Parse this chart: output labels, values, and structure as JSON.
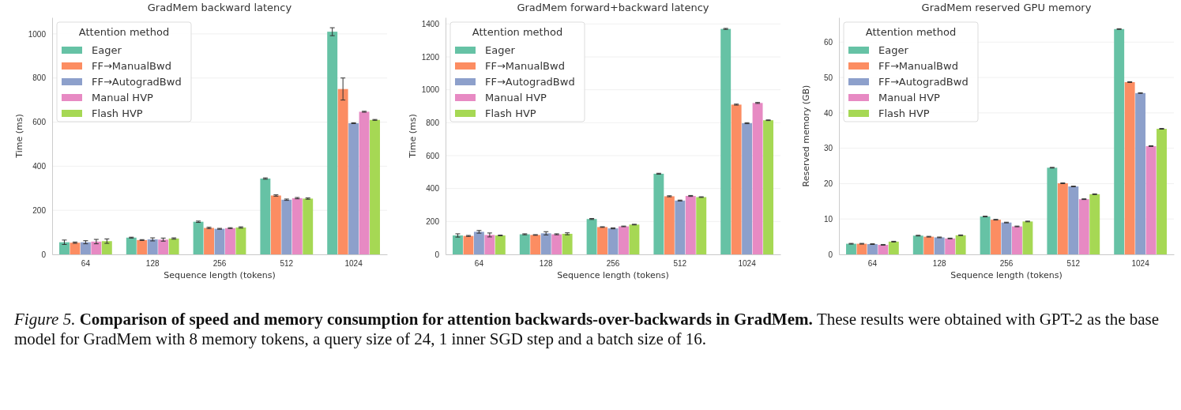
{
  "chart_data": [
    {
      "type": "bar",
      "title": "GradMem backward latency",
      "xlabel": "Sequence length (tokens)",
      "ylabel": "Time (ms)",
      "legend_title": "Attention method",
      "legend": "top left",
      "grid": "y",
      "categories": [
        "64",
        "128",
        "256",
        "512",
        "1024"
      ],
      "ylim": [
        0,
        1075
      ],
      "yticks": [
        0,
        200,
        400,
        600,
        800,
        1000
      ],
      "series": [
        {
          "name": "Eager",
          "color": "#66c2a5",
          "values": [
            55,
            76,
            148,
            344,
            1010
          ],
          "errors": [
            10,
            2,
            3,
            3,
            18
          ]
        },
        {
          "name": "FF→ManualBwd",
          "color": "#fc8d62",
          "values": [
            53,
            65,
            120,
            267,
            750
          ],
          "errors": [
            3,
            2,
            3,
            3,
            50
          ]
        },
        {
          "name": "FF→AutogradBwd",
          "color": "#8da0cb",
          "values": [
            55,
            68,
            116,
            248,
            595
          ],
          "errors": [
            7,
            7,
            2,
            3,
            2
          ]
        },
        {
          "name": "Manual HVP",
          "color": "#e78ac3",
          "values": [
            58,
            67,
            119,
            255,
            647
          ],
          "errors": [
            10,
            7,
            2,
            3,
            2
          ]
        },
        {
          "name": "Flash HVP",
          "color": "#a6d854",
          "values": [
            60,
            72,
            122,
            253,
            610
          ],
          "errors": [
            10,
            3,
            3,
            3,
            2
          ]
        }
      ],
      "annotations": [
        "Figure 5.",
        "Comparison of speed and memory consumption for attention backwards-over-backwards in GradMem.",
        "These results were obtained with GPT-2 as the base model for GradMem with 8 memory tokens, a query size of 24, 1 inner SGD step and a batch size of 16."
      ]
    },
    {
      "type": "bar",
      "title": "GradMem forward+backward latency",
      "xlabel": "Sequence length (tokens)",
      "ylabel": "Time (ms)",
      "legend_title": "Attention method",
      "legend": "top left",
      "grid": "y",
      "categories": [
        "64",
        "128",
        "256",
        "512",
        "1024"
      ],
      "ylim": [
        0,
        1440
      ],
      "yticks": [
        0,
        200,
        400,
        600,
        800,
        1000,
        1200,
        1400
      ],
      "series": [
        {
          "name": "Eager",
          "color": "#66c2a5",
          "values": [
            115,
            122,
            215,
            490,
            1370
          ],
          "errors": [
            10,
            3,
            3,
            3,
            3
          ]
        },
        {
          "name": "FF→ManualBwd",
          "color": "#fc8d62",
          "values": [
            112,
            118,
            166,
            353,
            910
          ],
          "errors": [
            3,
            2,
            2,
            3,
            3
          ]
        },
        {
          "name": "FF→AutogradBwd",
          "color": "#8da0cb",
          "values": [
            137,
            128,
            158,
            327,
            797
          ],
          "errors": [
            8,
            10,
            3,
            3,
            3
          ]
        },
        {
          "name": "Manual HVP",
          "color": "#e78ac3",
          "values": [
            118,
            122,
            170,
            355,
            920
          ],
          "errors": [
            12,
            3,
            2,
            3,
            3
          ]
        },
        {
          "name": "Flash HVP",
          "color": "#a6d854",
          "values": [
            115,
            125,
            181,
            348,
            815
          ],
          "errors": [
            2,
            6,
            2,
            2,
            2
          ]
        }
      ]
    },
    {
      "type": "bar",
      "title": "GradMem reserved GPU memory",
      "xlabel": "Sequence length (tokens)",
      "ylabel": "Reserved memory (GB)",
      "legend_title": "Attention method",
      "legend": "top left",
      "grid": "y",
      "categories": [
        "64",
        "128",
        "256",
        "512",
        "1024"
      ],
      "ylim": [
        0,
        67
      ],
      "yticks": [
        0,
        10,
        20,
        30,
        40,
        50,
        60
      ],
      "series": [
        {
          "name": "Eager",
          "color": "#66c2a5",
          "values": [
            3.0,
            5.3,
            10.7,
            24.5,
            63.7
          ],
          "errors": [
            0.1,
            0.1,
            0.1,
            0.1,
            0.1
          ]
        },
        {
          "name": "FF→ManualBwd",
          "color": "#fc8d62",
          "values": [
            3.0,
            5.0,
            9.8,
            20.1,
            48.7
          ],
          "errors": [
            0.1,
            0.1,
            0.1,
            0.1,
            0.1
          ]
        },
        {
          "name": "FF→AutogradBwd",
          "color": "#8da0cb",
          "values": [
            2.9,
            4.8,
            9.0,
            19.2,
            45.6
          ],
          "errors": [
            0.1,
            0.1,
            0.1,
            0.1,
            0.1
          ]
        },
        {
          "name": "Manual HVP",
          "color": "#e78ac3",
          "values": [
            2.7,
            4.5,
            7.9,
            15.6,
            30.6
          ],
          "errors": [
            0.1,
            0.1,
            0.1,
            0.1,
            0.1
          ]
        },
        {
          "name": "Flash HVP",
          "color": "#a6d854",
          "values": [
            3.6,
            5.4,
            9.3,
            17.0,
            35.5
          ],
          "errors": [
            0.1,
            0.1,
            0.1,
            0.1,
            0.1
          ]
        }
      ]
    }
  ]
}
